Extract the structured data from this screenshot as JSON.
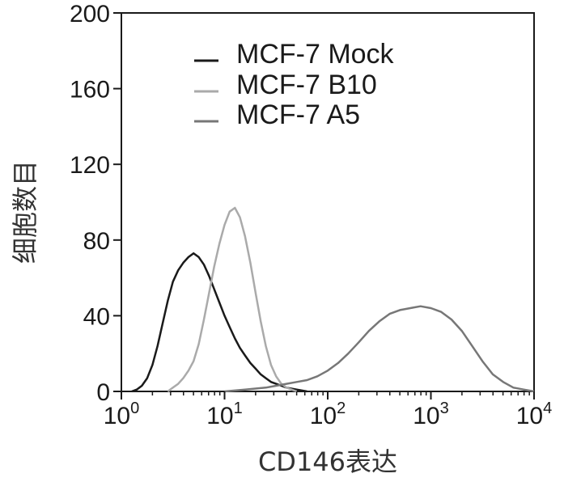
{
  "chart_data": {
    "type": "line",
    "xlabel": "CD146表达",
    "ylabel": "细胞数目",
    "xscale": "log",
    "xlim": [
      1,
      10000
    ],
    "ylim": [
      0,
      200
    ],
    "x_ticks": [
      {
        "value": 1,
        "base": "10",
        "exp": "0"
      },
      {
        "value": 10,
        "base": "10",
        "exp": "1"
      },
      {
        "value": 100,
        "base": "10",
        "exp": "2"
      },
      {
        "value": 1000,
        "base": "10",
        "exp": "3"
      },
      {
        "value": 10000,
        "base": "10",
        "exp": "4"
      }
    ],
    "y_ticks": [
      {
        "value": 0,
        "label": "0"
      },
      {
        "value": 40,
        "label": "40"
      },
      {
        "value": 80,
        "label": "80"
      },
      {
        "value": 120,
        "label": "120"
      },
      {
        "value": 160,
        "label": "160"
      },
      {
        "value": 200,
        "label": "200"
      }
    ],
    "legend_position": "top-right",
    "series": [
      {
        "name": "MCF-7 Mock",
        "color": "#1a1a1a",
        "x": [
          1.26,
          1.41,
          1.58,
          1.78,
          2.0,
          2.24,
          2.51,
          2.82,
          3.16,
          3.55,
          3.98,
          4.47,
          5.01,
          5.62,
          6.31,
          7.08,
          7.94,
          8.91,
          10.0,
          11.2,
          12.6,
          14.1,
          15.8,
          17.8,
          20.0,
          22.4,
          25.1,
          28.2,
          31.6,
          35.5,
          39.8,
          50.1,
          63.1
        ],
        "y": [
          0,
          1,
          3,
          7,
          14,
          24,
          36,
          48,
          58,
          64,
          68,
          71,
          73,
          71,
          67,
          61,
          54,
          47,
          40,
          34,
          28,
          23,
          19,
          15,
          12,
          9,
          7,
          5,
          4,
          3,
          2,
          1,
          0
        ]
      },
      {
        "name": "MCF-7 B10",
        "color": "#aaaaaa",
        "x": [
          2.82,
          3.16,
          3.55,
          3.98,
          4.47,
          5.01,
          5.62,
          6.31,
          7.08,
          7.94,
          8.91,
          10.0,
          11.2,
          12.6,
          14.1,
          15.8,
          17.8,
          20.0,
          22.4,
          25.1,
          28.2,
          31.6,
          35.5,
          39.8,
          44.7,
          50.1
        ],
        "y": [
          0,
          2,
          4,
          7,
          11,
          16,
          25,
          38,
          52,
          66,
          78,
          88,
          95,
          97,
          92,
          82,
          68,
          52,
          37,
          24,
          14,
          8,
          4,
          2,
          1,
          0
        ]
      },
      {
        "name": "MCF-7 A5",
        "color": "#777777",
        "x": [
          10.0,
          15.8,
          25.1,
          31.6,
          39.8,
          50.1,
          63.1,
          79.4,
          100,
          126,
          158,
          200,
          251,
          316,
          398,
          501,
          631,
          794,
          1000,
          1259,
          1585,
          1995,
          2512,
          3162,
          3981,
          5012,
          6310,
          7943,
          10000
        ],
        "y": [
          0,
          1,
          2,
          3,
          4,
          5,
          6,
          8,
          11,
          15,
          20,
          26,
          32,
          37,
          41,
          43,
          44,
          45,
          44,
          42,
          38,
          32,
          24,
          16,
          9,
          5,
          2,
          1,
          0
        ]
      }
    ]
  }
}
